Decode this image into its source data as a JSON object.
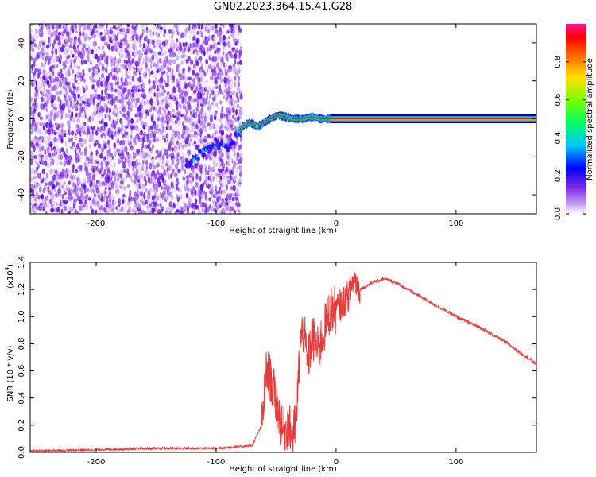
{
  "title": "GN02.2023.364.15.41.G28",
  "chart_data": [
    {
      "type": "heatmap",
      "xlabel": "Height of straight line (km)",
      "ylabel": "Frequency (Hz)",
      "xlim": [
        -255,
        167
      ],
      "ylim": [
        -50,
        50
      ],
      "x_ticks": [
        -200,
        -100,
        0,
        100
      ],
      "y_ticks": [
        -40,
        -20,
        0,
        20,
        40
      ],
      "colorbar": {
        "label": "Normalized spectral amplitude",
        "range": [
          0,
          1
        ],
        "ticks": [
          0,
          0.2,
          0.4,
          0.6,
          0.8
        ],
        "colormap": [
          "#ffffff",
          "#8a2be2",
          "#0000ff",
          "#00ffff",
          "#00ff00",
          "#ffff00",
          "#ff8000",
          "#ff0000",
          "#ff1493"
        ]
      },
      "ridge": {
        "x": [
          -125,
          -110,
          -100,
          -90,
          -82,
          -78,
          -72,
          -65,
          -55,
          -48,
          -42,
          -35,
          -28,
          -20,
          -12,
          -5,
          0,
          167
        ],
        "y": [
          -24,
          -17,
          -13,
          -15,
          -8,
          -4,
          -2,
          -4,
          0,
          2,
          1,
          0,
          0,
          1,
          0,
          0,
          0,
          0
        ]
      }
    },
    {
      "type": "line",
      "xlabel": "Height of straight line (km)",
      "ylabel": "SNR (10 * v/v)",
      "y_multiplier": "(x10",
      "y_multiplier_exp": "4",
      "xlim": [
        -255,
        167
      ],
      "ylim": [
        0,
        1.4
      ],
      "x_ticks": [
        -200,
        -100,
        0,
        100
      ],
      "y_ticks": [
        0.0,
        0.2,
        0.4,
        0.6,
        0.8,
        1.0,
        1.2,
        1.4
      ],
      "color": "#e83c3c",
      "series": [
        {
          "x": [
            -255,
            -200,
            -150,
            -100,
            -70,
            -62,
            -58,
            -55,
            -52,
            -48,
            -45,
            -40,
            -36,
            -33,
            -30,
            -27,
            -24,
            -20,
            -15,
            -10,
            -5,
            0,
            5,
            10,
            15,
            20,
            30,
            40,
            50,
            60,
            80,
            100,
            120,
            140,
            167
          ],
          "y": [
            0.01,
            0.02,
            0.03,
            0.03,
            0.05,
            0.2,
            0.6,
            0.55,
            0.45,
            0.3,
            0.15,
            0.2,
            0.12,
            0.25,
            0.8,
            0.9,
            0.65,
            0.85,
            0.75,
            0.9,
            1.05,
            1.05,
            1.1,
            1.15,
            1.28,
            1.2,
            1.25,
            1.28,
            1.25,
            1.2,
            1.1,
            1.0,
            0.92,
            0.82,
            0.65
          ]
        }
      ]
    }
  ]
}
